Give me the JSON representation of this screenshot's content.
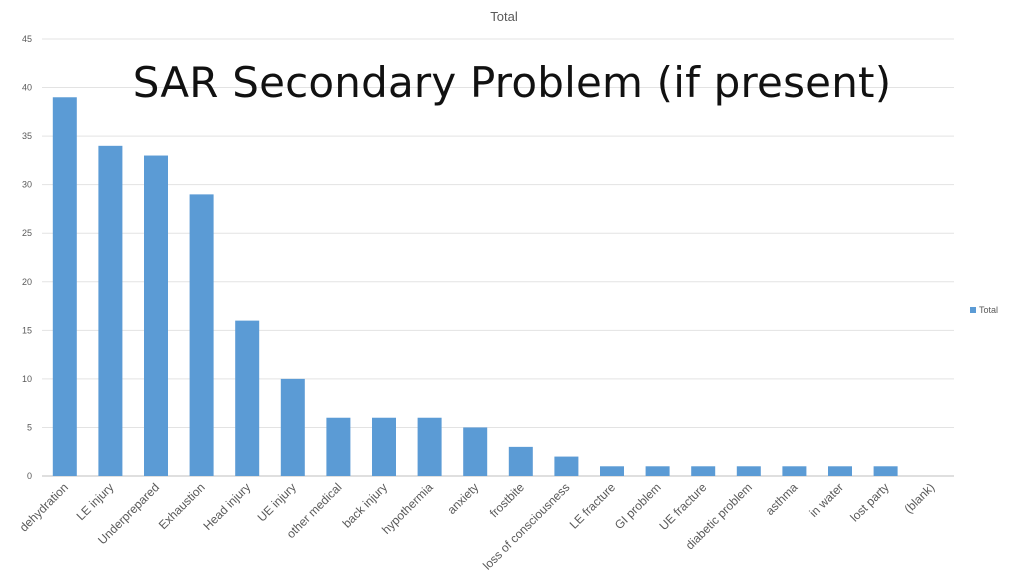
{
  "slide": {
    "title": "SAR Secondary Problem (if present)"
  },
  "chart_data": {
    "type": "bar",
    "title": "Total",
    "xlabel": "",
    "ylabel": "",
    "ylim": [
      0,
      45
    ],
    "yticks": [
      0,
      5,
      10,
      15,
      20,
      25,
      30,
      35,
      40,
      45
    ],
    "grid": true,
    "legend": {
      "placement": "right",
      "entries": [
        "Total"
      ]
    },
    "bar_color": "#5b9bd5",
    "categories": [
      "dehydration",
      "LE injury",
      "Underprepared",
      "Exhaustion",
      "Head injury",
      "UE injury",
      "other medical",
      "back injury",
      "hypothermia",
      "anxiety",
      "frostbite",
      "loss of consciousness",
      "LE fracture",
      "GI problem",
      "UE fracture",
      "diabetic problem",
      "asthma",
      "in water",
      "lost party",
      "(blank)"
    ],
    "series": [
      {
        "name": "Total",
        "values": [
          39,
          34,
          33,
          29,
          16,
          10,
          6,
          6,
          6,
          5,
          3,
          2,
          1,
          1,
          1,
          1,
          1,
          1,
          1,
          0
        ]
      }
    ]
  }
}
